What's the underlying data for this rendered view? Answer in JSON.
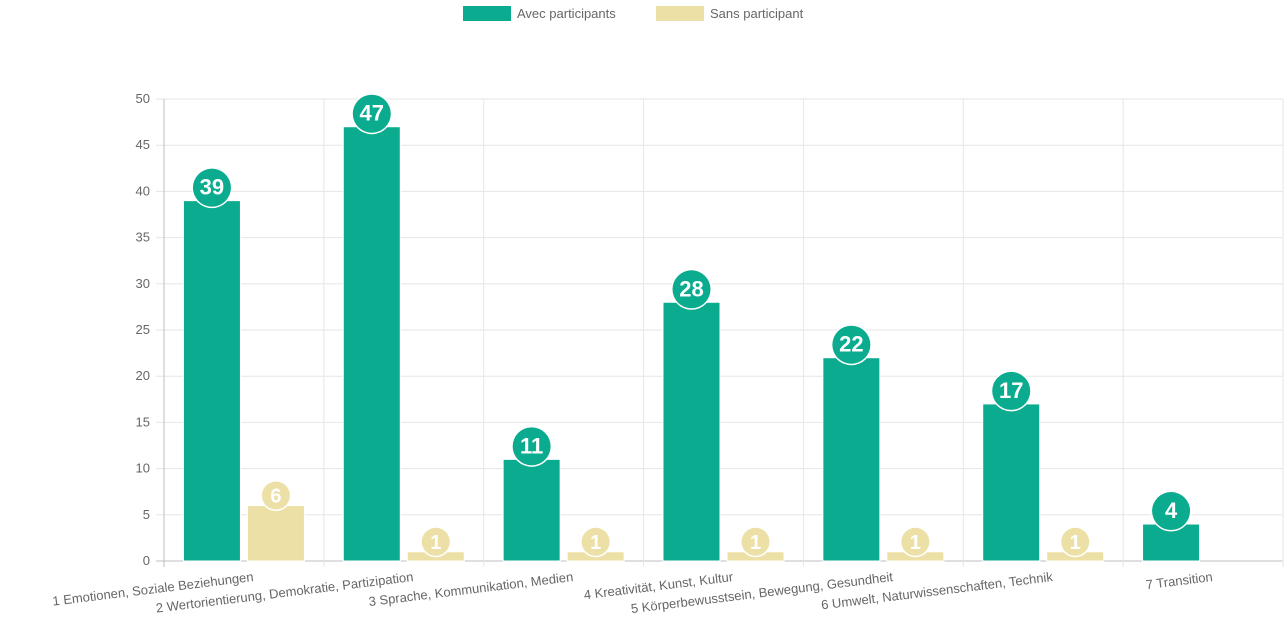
{
  "chart_data": {
    "type": "bar",
    "categories": [
      "1 Emotionen, Soziale Beziehungen",
      "2 Wertorientierung, Demokratie, Partizipation",
      "3 Sprache, Kommunikation, Medien",
      "4 Kreativität, Kunst, Kultur",
      "5 Körperbewusstsein, Bewegung, Gesundheit",
      "6 Umwelt, Naturwissenschaften, Technik",
      "7 Transition"
    ],
    "series": [
      {
        "name": "Avec participants",
        "values": [
          39,
          47,
          11,
          28,
          22,
          17,
          4
        ],
        "color": "#0aab8f"
      },
      {
        "name": "Sans participant",
        "values": [
          6,
          1,
          1,
          1,
          1,
          1,
          null
        ],
        "color": "#ede0a6"
      }
    ],
    "ylim": [
      0,
      50
    ],
    "yticks": [
      "0",
      "5",
      "10",
      "15",
      "20",
      "25",
      "30",
      "35",
      "40",
      "45",
      "50"
    ],
    "grid": true,
    "legend_position": "top",
    "data_labels": true
  }
}
